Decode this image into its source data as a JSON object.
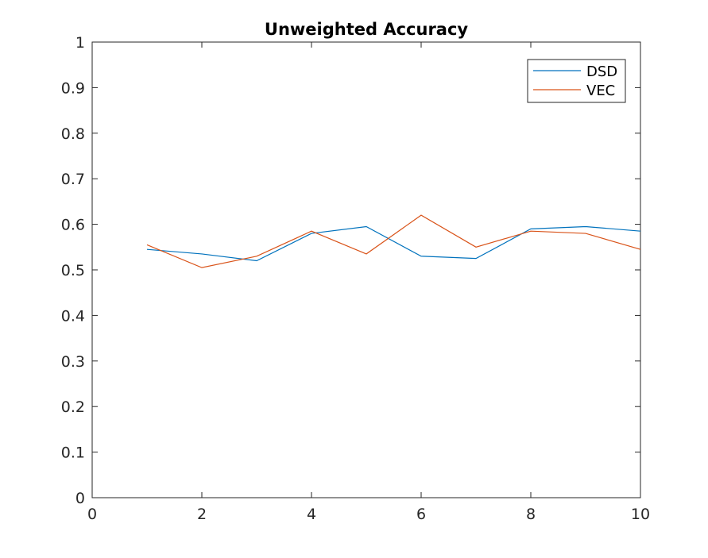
{
  "chart_data": {
    "type": "line",
    "title": "Unweighted Accuracy",
    "xlabel": "",
    "ylabel": "",
    "xlim": [
      0,
      10
    ],
    "ylim": [
      0,
      1
    ],
    "xticks": [
      0,
      2,
      4,
      6,
      8,
      10
    ],
    "xtick_labels": [
      "0",
      "2",
      "4",
      "6",
      "8",
      "10"
    ],
    "yticks": [
      0,
      0.1,
      0.2,
      0.3,
      0.4,
      0.5,
      0.6,
      0.7,
      0.8,
      0.9,
      1
    ],
    "ytick_labels": [
      "0",
      "0.1",
      "0.2",
      "0.3",
      "0.4",
      "0.5",
      "0.6",
      "0.7",
      "0.8",
      "0.9",
      "1"
    ],
    "grid": false,
    "legend_position": "top-right",
    "x": [
      1,
      2,
      3,
      4,
      5,
      6,
      7,
      8,
      9,
      10
    ],
    "series": [
      {
        "name": "DSD",
        "color": "#0072BD",
        "values": [
          0.545,
          0.535,
          0.52,
          0.58,
          0.595,
          0.53,
          0.525,
          0.59,
          0.595,
          0.585
        ]
      },
      {
        "name": "VEC",
        "color": "#D95319",
        "values": [
          0.555,
          0.505,
          0.53,
          0.585,
          0.535,
          0.62,
          0.55,
          0.585,
          0.58,
          0.545
        ]
      }
    ]
  }
}
